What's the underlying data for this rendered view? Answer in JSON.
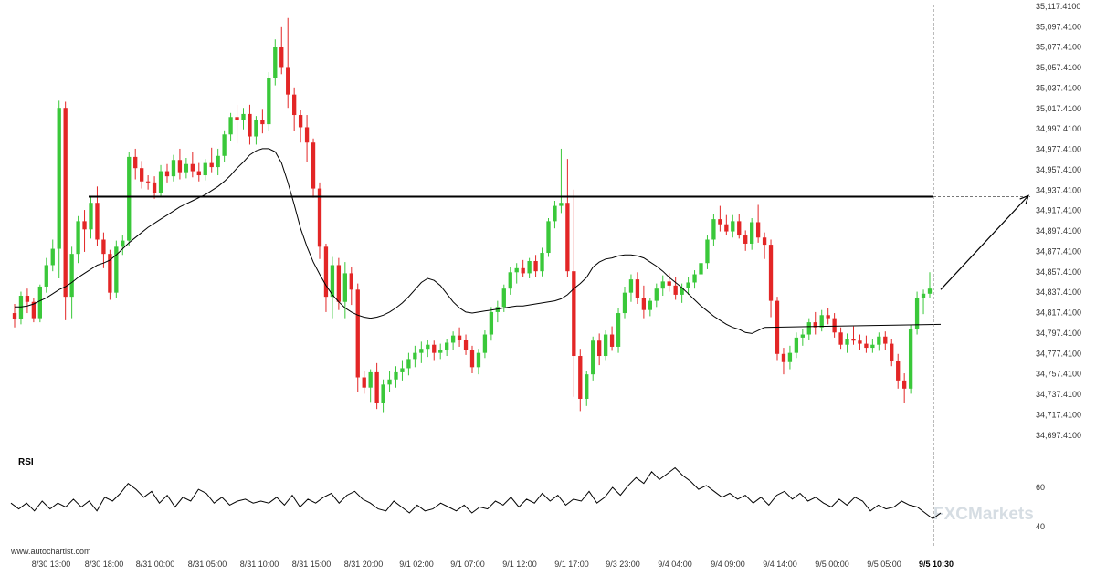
{
  "chart_data": {
    "type": "candlestick",
    "yaxis_labels": [
      "35,117.4100",
      "35,097.4100",
      "35,077.4100",
      "35,057.4100",
      "35,037.4100",
      "35,017.4100",
      "34,997.4100",
      "34,977.4100",
      "34,957.4100",
      "34,937.4100",
      "34,917.4100",
      "34,897.4100",
      "34,877.4100",
      "34,857.4100",
      "34,837.4100",
      "34,817.4100",
      "34,797.4100",
      "34,777.4100",
      "34,757.4100",
      "34,737.4100",
      "34,717.4100",
      "34,697.4100"
    ],
    "ylim": [
      34687.41,
      35117.41
    ],
    "xaxis_labels": [
      "8/30 13:00",
      "8/30 18:00",
      "8/31 00:00",
      "8/31 05:00",
      "8/31 10:00",
      "8/31 15:00",
      "8/31 20:00",
      "9/1 02:00",
      "9/1 07:00",
      "9/1 12:00",
      "9/1 17:00",
      "9/3 23:00",
      "9/4 04:00",
      "9/4 09:00",
      "9/4 14:00",
      "9/5 00:00",
      "9/5 05:00",
      "9/5 10:30"
    ],
    "resistance_level": 34931,
    "forecast": {
      "from": 34840,
      "to": 34932
    },
    "candles": [
      [
        34817,
        34826,
        34803,
        34811
      ],
      [
        34811,
        34838,
        34806,
        34834
      ],
      [
        34834,
        34841,
        34817,
        34828
      ],
      [
        34828,
        34832,
        34808,
        34812
      ],
      [
        34812,
        34845,
        34808,
        34843
      ],
      [
        34843,
        34871,
        34837,
        34864
      ],
      [
        34864,
        34889,
        34858,
        34880
      ],
      [
        34880,
        35025,
        34851,
        35018
      ],
      [
        35018,
        35024,
        34810,
        34833
      ],
      [
        34833,
        34882,
        34812,
        34875
      ],
      [
        34875,
        34912,
        34866,
        34907
      ],
      [
        34907,
        34918,
        34877,
        34899
      ],
      [
        34899,
        34931,
        34890,
        34925
      ],
      [
        34925,
        34941,
        34883,
        34889
      ],
      [
        34889,
        34896,
        34861,
        34875
      ],
      [
        34875,
        34879,
        34830,
        34837
      ],
      [
        34837,
        34888,
        34832,
        34882
      ],
      [
        34882,
        34893,
        34874,
        34888
      ],
      [
        34888,
        34975,
        34883,
        34970
      ],
      [
        34970,
        34978,
        34948,
        34959
      ],
      [
        34959,
        34966,
        34939,
        34946
      ],
      [
        34946,
        34952,
        34938,
        34945
      ],
      [
        34945,
        34951,
        34929,
        34935
      ],
      [
        34935,
        34962,
        34931,
        34956
      ],
      [
        34956,
        34963,
        34945,
        34951
      ],
      [
        34951,
        34972,
        34946,
        34967
      ],
      [
        34967,
        34978,
        34948,
        34955
      ],
      [
        34955,
        34969,
        34949,
        34963
      ],
      [
        34963,
        34975,
        34950,
        34956
      ],
      [
        34956,
        34964,
        34946,
        34952
      ],
      [
        34952,
        34968,
        34947,
        34964
      ],
      [
        34964,
        34979,
        34955,
        34960
      ],
      [
        34960,
        34978,
        34952,
        34971
      ],
      [
        34971,
        34996,
        34965,
        34992
      ],
      [
        34992,
        35013,
        34986,
        35009
      ],
      [
        35009,
        35021,
        34983,
        35006
      ],
      [
        35006,
        35018,
        34997,
        35012
      ],
      [
        35012,
        35021,
        34982,
        34990
      ],
      [
        34990,
        35010,
        34982,
        35006
      ],
      [
        35006,
        35017,
        34993,
        35002
      ],
      [
        35002,
        35053,
        34995,
        35047
      ],
      [
        35047,
        35085,
        35040,
        35078
      ],
      [
        35078,
        35097,
        35051,
        35058
      ],
      [
        35058,
        35106,
        35018,
        35031
      ],
      [
        35031,
        35038,
        34995,
        35011
      ],
      [
        35011,
        35016,
        34984,
        34999
      ],
      [
        34999,
        35011,
        34965,
        34984
      ],
      [
        34984,
        34988,
        34930,
        34939
      ],
      [
        34939,
        34945,
        34870,
        34882
      ],
      [
        34882,
        34885,
        34818,
        34833
      ],
      [
        34833,
        34872,
        34812,
        34864
      ],
      [
        34864,
        34871,
        34820,
        34828
      ],
      [
        34828,
        34867,
        34812,
        34856
      ],
      [
        34856,
        34862,
        34825,
        34840
      ],
      [
        34840,
        34846,
        34740,
        34754
      ],
      [
        34754,
        34760,
        34738,
        34744
      ],
      [
        34744,
        34762,
        34730,
        34759
      ],
      [
        34759,
        34768,
        34723,
        34729
      ],
      [
        34729,
        34752,
        34720,
        34747
      ],
      [
        34747,
        34760,
        34740,
        34752
      ],
      [
        34752,
        34765,
        34744,
        34759
      ],
      [
        34759,
        34771,
        34751,
        34763
      ],
      [
        34763,
        34778,
        34756,
        34772
      ],
      [
        34772,
        34785,
        34764,
        34778
      ],
      [
        34778,
        34789,
        34768,
        34782
      ],
      [
        34782,
        34791,
        34774,
        34786
      ],
      [
        34786,
        34790,
        34771,
        34778
      ],
      [
        34778,
        34787,
        34772,
        34781
      ],
      [
        34781,
        34792,
        34775,
        34788
      ],
      [
        34788,
        34799,
        34781,
        34795
      ],
      [
        34795,
        34803,
        34784,
        34791
      ],
      [
        34791,
        34796,
        34776,
        34781
      ],
      [
        34781,
        34785,
        34758,
        34764
      ],
      [
        34764,
        34782,
        34757,
        34778
      ],
      [
        34778,
        34800,
        34773,
        34796
      ],
      [
        34796,
        34823,
        34790,
        34818
      ],
      [
        34818,
        34829,
        34808,
        34823
      ],
      [
        34823,
        34845,
        34818,
        34841
      ],
      [
        34841,
        34862,
        34835,
        34857
      ],
      [
        34857,
        34866,
        34846,
        34861
      ],
      [
        34861,
        34869,
        34852,
        34856
      ],
      [
        34856,
        34871,
        34851,
        34868
      ],
      [
        34868,
        34874,
        34852,
        34858
      ],
      [
        34858,
        34881,
        34853,
        34876
      ],
      [
        34876,
        34910,
        34872,
        34907
      ],
      [
        34907,
        34927,
        34900,
        34922
      ],
      [
        34922,
        34978,
        34915,
        34925
      ],
      [
        34925,
        34968,
        34852,
        34858
      ],
      [
        34858,
        34938,
        34735,
        34775
      ],
      [
        34775,
        34782,
        34721,
        34733
      ],
      [
        34733,
        34760,
        34726,
        34757
      ],
      [
        34757,
        34794,
        34751,
        34790
      ],
      [
        34790,
        34797,
        34766,
        34775
      ],
      [
        34775,
        34800,
        34771,
        34796
      ],
      [
        34796,
        34804,
        34780,
        34784
      ],
      [
        34784,
        34822,
        34778,
        34817
      ],
      [
        34817,
        34843,
        34812,
        34837
      ],
      [
        34837,
        34855,
        34828,
        34850
      ],
      [
        34850,
        34857,
        34826,
        34832
      ],
      [
        34832,
        34844,
        34812,
        34820
      ],
      [
        34820,
        34832,
        34814,
        34829
      ],
      [
        34829,
        34846,
        34823,
        34841
      ],
      [
        34841,
        34854,
        34834,
        34848
      ],
      [
        34848,
        34856,
        34838,
        34844
      ],
      [
        34844,
        34852,
        34830,
        34835
      ],
      [
        34835,
        34846,
        34827,
        34842
      ],
      [
        34842,
        34852,
        34835,
        34847
      ],
      [
        34847,
        34859,
        34841,
        34855
      ],
      [
        34855,
        34870,
        34849,
        34866
      ],
      [
        34866,
        34893,
        34860,
        34889
      ],
      [
        34889,
        34914,
        34883,
        34909
      ],
      [
        34909,
        34922,
        34897,
        34904
      ],
      [
        34904,
        34913,
        34893,
        34897
      ],
      [
        34897,
        34913,
        34891,
        34907
      ],
      [
        34907,
        34914,
        34890,
        34893
      ],
      [
        34893,
        34898,
        34878,
        34885
      ],
      [
        34885,
        34910,
        34879,
        34906
      ],
      [
        34906,
        34923,
        34886,
        34891
      ],
      [
        34891,
        34896,
        34870,
        34884
      ],
      [
        34884,
        34889,
        34813,
        34829
      ],
      [
        34829,
        34833,
        34771,
        34777
      ],
      [
        34777,
        34783,
        34757,
        34769
      ],
      [
        34769,
        34785,
        34762,
        34778
      ],
      [
        34778,
        34798,
        34773,
        34793
      ],
      [
        34793,
        34801,
        34785,
        34796
      ],
      [
        34796,
        34812,
        34791,
        34808
      ],
      [
        34808,
        34818,
        34796,
        34803
      ],
      [
        34803,
        34820,
        34799,
        34815
      ],
      [
        34815,
        34822,
        34806,
        34812
      ],
      [
        34812,
        34817,
        34793,
        34798
      ],
      [
        34798,
        34803,
        34782,
        34786
      ],
      [
        34786,
        34797,
        34778,
        34792
      ],
      [
        34792,
        34804,
        34786,
        34790
      ],
      [
        34790,
        34796,
        34781,
        34787
      ],
      [
        34787,
        34795,
        34778,
        34783
      ],
      [
        34783,
        34792,
        34778,
        34786
      ],
      [
        34786,
        34798,
        34780,
        34794
      ],
      [
        34794,
        34799,
        34781,
        34787
      ],
      [
        34787,
        34792,
        34765,
        34770
      ],
      [
        34770,
        34777,
        34743,
        34751
      ],
      [
        34751,
        34758,
        34729,
        34743
      ],
      [
        34743,
        34805,
        34738,
        34801
      ],
      [
        34801,
        34838,
        34796,
        34832
      ],
      [
        34832,
        34840,
        34816,
        34836
      ],
      [
        34836,
        34857,
        34832,
        34841
      ]
    ],
    "ma": [
      34823,
      34823,
      34824,
      34826,
      34829,
      34832,
      34836,
      34840,
      34843,
      34847,
      34852,
      34856,
      34860,
      34864,
      34866,
      34869,
      34874,
      34880,
      34886,
      34891,
      34896,
      34901,
      34905,
      34909,
      34913,
      34917,
      34921,
      34924,
      34927,
      34930,
      34933,
      34937,
      34941,
      34946,
      34952,
      34959,
      34965,
      34972,
      34976,
      34978,
      34978,
      34975,
      34964,
      34945,
      34923,
      34900,
      34882,
      34867,
      34855,
      34844,
      34835,
      34828,
      34822,
      34818,
      34815,
      34813,
      34812,
      34813,
      34815,
      34818,
      34822,
      34827,
      34833,
      34840,
      34847,
      34851,
      34849,
      34844,
      34836,
      34828,
      34822,
      34818,
      34817,
      34818,
      34819,
      34820,
      34821,
      34822,
      34823,
      34824,
      34824,
      34825,
      34826,
      34827,
      34828,
      34829,
      34831,
      34835,
      34841,
      34846,
      34852,
      34862,
      34867,
      34870,
      34871,
      34873,
      34874,
      34874,
      34873,
      34871,
      34867,
      34863,
      34858,
      34852,
      34847,
      34842,
      34836,
      34830,
      34824,
      34819,
      34814,
      34810,
      34806,
      34803,
      34801,
      34798,
      34797,
      34800,
      34803
    ],
    "rsi": [
      52,
      49,
      52,
      48,
      53,
      49,
      52,
      50,
      54,
      50,
      53,
      48,
      55,
      53,
      57,
      62,
      59,
      55,
      58,
      52,
      56,
      50,
      55,
      53,
      59,
      57,
      52,
      55,
      51,
      53,
      54,
      52,
      53,
      52,
      55,
      51,
      56,
      50,
      54,
      52,
      55,
      57,
      52,
      56,
      58,
      54,
      52,
      49,
      48,
      53,
      50,
      47,
      51,
      48,
      49,
      52,
      50,
      48,
      51,
      47,
      50,
      49,
      53,
      51,
      55,
      50,
      54,
      52,
      57,
      53,
      56,
      51,
      54,
      53,
      58,
      52,
      55,
      60,
      56,
      61,
      65,
      62,
      68,
      64,
      67,
      70,
      66,
      63,
      59,
      61,
      58,
      55,
      57,
      54,
      56,
      52,
      55,
      51,
      56,
      58,
      54,
      57,
      53,
      55,
      52,
      50,
      54,
      51,
      55,
      53,
      48,
      51,
      49,
      50,
      53,
      51,
      50,
      47,
      44,
      47
    ],
    "rsi_labels": [
      "60",
      "40"
    ],
    "rsi_label": "RSI"
  },
  "source_text": "www.autochartist.com",
  "watermark": "FXCMarkets",
  "colors": {
    "up": "#3ac83a",
    "down": "#e32626",
    "line": "#000000"
  }
}
